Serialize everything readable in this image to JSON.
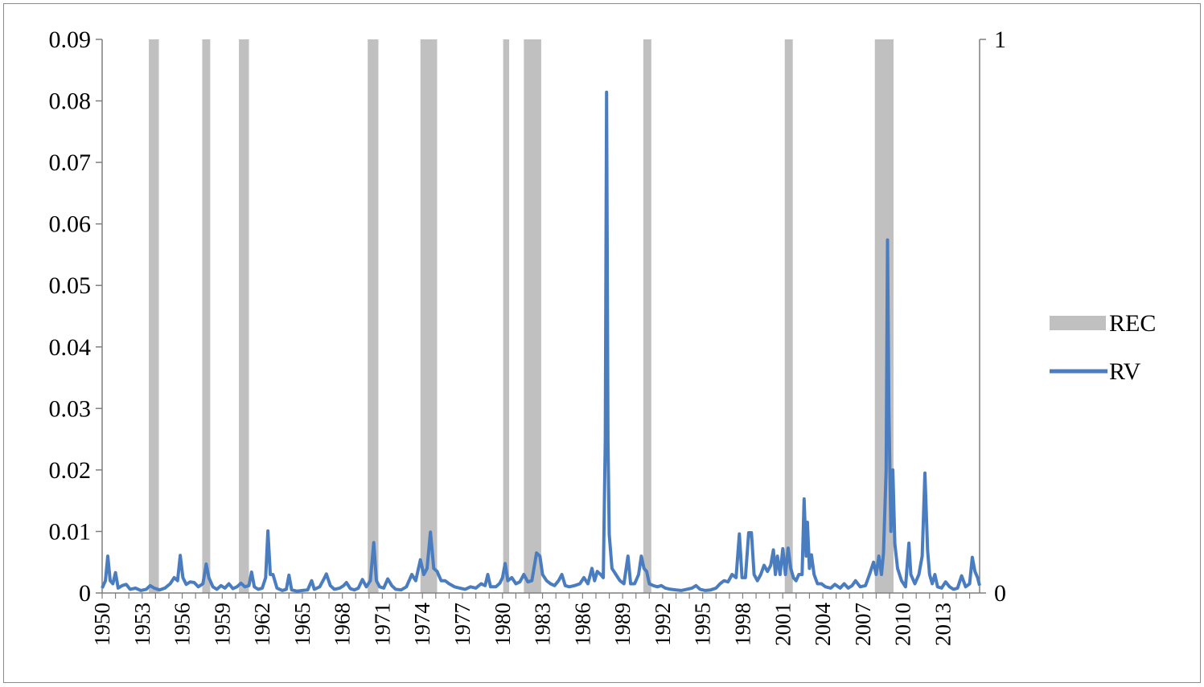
{
  "chart_data": {
    "type": "line",
    "title": "",
    "xlabel": "",
    "ylabel": "",
    "x_range": [
      1950,
      2015.75
    ],
    "x_tick_labels": [
      "1950",
      "1953",
      "1956",
      "1959",
      "1962",
      "1965",
      "1968",
      "1971",
      "1974",
      "1977",
      "1980",
      "1983",
      "1986",
      "1989",
      "1992",
      "1995",
      "1998",
      "2001",
      "2004",
      "2007",
      "2010",
      "2013"
    ],
    "y_left": {
      "range": [
        0,
        0.09
      ],
      "tick_labels": [
        "0",
        "0.01",
        "0.02",
        "0.03",
        "0.04",
        "0.05",
        "0.06",
        "0.07",
        "0.08",
        "0.09"
      ]
    },
    "y_right": {
      "range": [
        0,
        1
      ],
      "tick_labels": [
        "0",
        "1"
      ]
    },
    "legend": {
      "placement": "right",
      "entries": [
        {
          "label": "REC",
          "kind": "bar",
          "color": "#c0c0c0"
        },
        {
          "label": "RV",
          "kind": "line",
          "color": "#4a7dbf"
        }
      ]
    },
    "series": [
      {
        "name": "REC",
        "axis": "right",
        "kind": "shaded-periods",
        "color": "#c0c0c0",
        "periods": [
          [
            1953.5,
            1954.25
          ],
          [
            1957.5,
            1958.1
          ],
          [
            1960.25,
            1961.0
          ],
          [
            1969.9,
            1970.7
          ],
          [
            1973.85,
            1975.1
          ],
          [
            1980.05,
            1980.5
          ],
          [
            1981.6,
            1982.9
          ],
          [
            1990.55,
            1991.15
          ],
          [
            2001.15,
            2001.75
          ],
          [
            2007.9,
            2009.3
          ]
        ]
      },
      {
        "name": "RV",
        "axis": "left",
        "kind": "line",
        "color": "#4a7dbf",
        "points": [
          [
            1950.0,
            0.0008
          ],
          [
            1950.25,
            0.002
          ],
          [
            1950.42,
            0.006
          ],
          [
            1950.6,
            0.002
          ],
          [
            1950.8,
            0.0015
          ],
          [
            1951.0,
            0.0033
          ],
          [
            1951.2,
            0.0008
          ],
          [
            1951.5,
            0.0012
          ],
          [
            1951.8,
            0.0014
          ],
          [
            1952.1,
            0.0006
          ],
          [
            1952.5,
            0.0008
          ],
          [
            1952.9,
            0.0004
          ],
          [
            1953.3,
            0.0006
          ],
          [
            1953.6,
            0.0012
          ],
          [
            1953.9,
            0.0008
          ],
          [
            1954.3,
            0.0005
          ],
          [
            1954.7,
            0.0008
          ],
          [
            1955.1,
            0.0015
          ],
          [
            1955.4,
            0.0025
          ],
          [
            1955.65,
            0.002
          ],
          [
            1955.85,
            0.0061
          ],
          [
            1956.05,
            0.0025
          ],
          [
            1956.3,
            0.0014
          ],
          [
            1956.6,
            0.0018
          ],
          [
            1956.9,
            0.0017
          ],
          [
            1957.2,
            0.001
          ],
          [
            1957.55,
            0.0015
          ],
          [
            1957.8,
            0.0047
          ],
          [
            1958.0,
            0.0025
          ],
          [
            1958.3,
            0.001
          ],
          [
            1958.6,
            0.0006
          ],
          [
            1958.9,
            0.0012
          ],
          [
            1959.2,
            0.0008
          ],
          [
            1959.5,
            0.0015
          ],
          [
            1959.8,
            0.0007
          ],
          [
            1960.1,
            0.001
          ],
          [
            1960.4,
            0.0016
          ],
          [
            1960.7,
            0.001
          ],
          [
            1961.0,
            0.0012
          ],
          [
            1961.2,
            0.0034
          ],
          [
            1961.4,
            0.001
          ],
          [
            1961.7,
            0.0006
          ],
          [
            1962.0,
            0.0008
          ],
          [
            1962.25,
            0.0025
          ],
          [
            1962.42,
            0.0101
          ],
          [
            1962.6,
            0.003
          ],
          [
            1962.8,
            0.003
          ],
          [
            1963.1,
            0.0008
          ],
          [
            1963.5,
            0.0004
          ],
          [
            1963.8,
            0.0006
          ],
          [
            1964.0,
            0.0029
          ],
          [
            1964.2,
            0.0005
          ],
          [
            1964.6,
            0.0003
          ],
          [
            1965.0,
            0.0004
          ],
          [
            1965.4,
            0.0005
          ],
          [
            1965.7,
            0.002
          ],
          [
            1965.9,
            0.0006
          ],
          [
            1966.3,
            0.001
          ],
          [
            1966.6,
            0.0022
          ],
          [
            1966.8,
            0.0031
          ],
          [
            1967.1,
            0.0012
          ],
          [
            1967.4,
            0.0006
          ],
          [
            1967.8,
            0.0008
          ],
          [
            1968.1,
            0.0012
          ],
          [
            1968.3,
            0.0017
          ],
          [
            1968.6,
            0.0007
          ],
          [
            1968.9,
            0.0005
          ],
          [
            1969.2,
            0.0008
          ],
          [
            1969.5,
            0.0022
          ],
          [
            1969.8,
            0.001
          ],
          [
            1970.1,
            0.002
          ],
          [
            1970.35,
            0.0082
          ],
          [
            1970.55,
            0.002
          ],
          [
            1970.8,
            0.001
          ],
          [
            1971.1,
            0.0008
          ],
          [
            1971.4,
            0.0023
          ],
          [
            1971.7,
            0.0012
          ],
          [
            1972.0,
            0.0006
          ],
          [
            1972.4,
            0.0005
          ],
          [
            1972.8,
            0.001
          ],
          [
            1973.2,
            0.003
          ],
          [
            1973.5,
            0.002
          ],
          [
            1973.85,
            0.0054
          ],
          [
            1974.1,
            0.003
          ],
          [
            1974.35,
            0.004
          ],
          [
            1974.6,
            0.0099
          ],
          [
            1974.85,
            0.004
          ],
          [
            1975.1,
            0.0035
          ],
          [
            1975.4,
            0.002
          ],
          [
            1975.7,
            0.002
          ],
          [
            1976.0,
            0.0015
          ],
          [
            1976.4,
            0.001
          ],
          [
            1976.8,
            0.0008
          ],
          [
            1977.2,
            0.0006
          ],
          [
            1977.6,
            0.001
          ],
          [
            1978.0,
            0.0008
          ],
          [
            1978.4,
            0.0015
          ],
          [
            1978.7,
            0.0012
          ],
          [
            1978.9,
            0.003
          ],
          [
            1979.1,
            0.001
          ],
          [
            1979.5,
            0.001
          ],
          [
            1979.8,
            0.0016
          ],
          [
            1980.0,
            0.0025
          ],
          [
            1980.2,
            0.0048
          ],
          [
            1980.4,
            0.002
          ],
          [
            1980.7,
            0.0025
          ],
          [
            1981.0,
            0.0015
          ],
          [
            1981.3,
            0.0018
          ],
          [
            1981.6,
            0.003
          ],
          [
            1981.9,
            0.0018
          ],
          [
            1982.2,
            0.002
          ],
          [
            1982.55,
            0.0065
          ],
          [
            1982.8,
            0.006
          ],
          [
            1983.0,
            0.003
          ],
          [
            1983.3,
            0.002
          ],
          [
            1983.6,
            0.0015
          ],
          [
            1983.9,
            0.0012
          ],
          [
            1984.2,
            0.002
          ],
          [
            1984.45,
            0.003
          ],
          [
            1984.7,
            0.0012
          ],
          [
            1985.0,
            0.001
          ],
          [
            1985.4,
            0.0012
          ],
          [
            1985.8,
            0.0015
          ],
          [
            1986.1,
            0.0025
          ],
          [
            1986.4,
            0.0015
          ],
          [
            1986.7,
            0.004
          ],
          [
            1986.9,
            0.002
          ],
          [
            1987.1,
            0.0035
          ],
          [
            1987.35,
            0.003
          ],
          [
            1987.55,
            0.0025
          ],
          [
            1987.7,
            0.025
          ],
          [
            1987.8,
            0.0814
          ],
          [
            1987.9,
            0.025
          ],
          [
            1988.0,
            0.0095
          ],
          [
            1988.2,
            0.004
          ],
          [
            1988.5,
            0.003
          ],
          [
            1988.8,
            0.002
          ],
          [
            1989.1,
            0.0015
          ],
          [
            1989.4,
            0.006
          ],
          [
            1989.6,
            0.0015
          ],
          [
            1989.9,
            0.0015
          ],
          [
            1990.2,
            0.003
          ],
          [
            1990.4,
            0.006
          ],
          [
            1990.6,
            0.004
          ],
          [
            1990.8,
            0.0035
          ],
          [
            1991.0,
            0.0015
          ],
          [
            1991.3,
            0.0012
          ],
          [
            1991.6,
            0.001
          ],
          [
            1991.9,
            0.0012
          ],
          [
            1992.2,
            0.0008
          ],
          [
            1992.6,
            0.0006
          ],
          [
            1993.0,
            0.0005
          ],
          [
            1993.4,
            0.0004
          ],
          [
            1993.8,
            0.0006
          ],
          [
            1994.2,
            0.0008
          ],
          [
            1994.5,
            0.0012
          ],
          [
            1994.8,
            0.0006
          ],
          [
            1995.2,
            0.0004
          ],
          [
            1995.6,
            0.0005
          ],
          [
            1996.0,
            0.0008
          ],
          [
            1996.3,
            0.0015
          ],
          [
            1996.6,
            0.002
          ],
          [
            1996.9,
            0.0018
          ],
          [
            1997.2,
            0.003
          ],
          [
            1997.5,
            0.0025
          ],
          [
            1997.75,
            0.0096
          ],
          [
            1997.95,
            0.0025
          ],
          [
            1998.2,
            0.0025
          ],
          [
            1998.45,
            0.0098
          ],
          [
            1998.65,
            0.0098
          ],
          [
            1998.85,
            0.003
          ],
          [
            1999.1,
            0.002
          ],
          [
            1999.35,
            0.003
          ],
          [
            1999.6,
            0.0045
          ],
          [
            1999.85,
            0.0035
          ],
          [
            2000.1,
            0.0045
          ],
          [
            2000.3,
            0.007
          ],
          [
            2000.45,
            0.003
          ],
          [
            2000.6,
            0.006
          ],
          [
            2000.8,
            0.003
          ],
          [
            2001.0,
            0.0072
          ],
          [
            2001.2,
            0.003
          ],
          [
            2001.4,
            0.0073
          ],
          [
            2001.6,
            0.004
          ],
          [
            2001.8,
            0.0025
          ],
          [
            2002.0,
            0.002
          ],
          [
            2002.2,
            0.003
          ],
          [
            2002.45,
            0.003
          ],
          [
            2002.6,
            0.0153
          ],
          [
            2002.75,
            0.006
          ],
          [
            2002.85,
            0.0115
          ],
          [
            2003.0,
            0.004
          ],
          [
            2003.15,
            0.0062
          ],
          [
            2003.35,
            0.003
          ],
          [
            2003.6,
            0.0015
          ],
          [
            2003.9,
            0.0015
          ],
          [
            2004.2,
            0.001
          ],
          [
            2004.6,
            0.0008
          ],
          [
            2004.9,
            0.0014
          ],
          [
            2005.3,
            0.0008
          ],
          [
            2005.6,
            0.0015
          ],
          [
            2005.9,
            0.0008
          ],
          [
            2006.2,
            0.0012
          ],
          [
            2006.45,
            0.002
          ],
          [
            2006.8,
            0.001
          ],
          [
            2007.2,
            0.0012
          ],
          [
            2007.5,
            0.003
          ],
          [
            2007.8,
            0.005
          ],
          [
            2008.0,
            0.003
          ],
          [
            2008.2,
            0.006
          ],
          [
            2008.4,
            0.003
          ],
          [
            2008.55,
            0.0065
          ],
          [
            2008.75,
            0.02
          ],
          [
            2008.85,
            0.0574
          ],
          [
            2008.95,
            0.03
          ],
          [
            2009.1,
            0.01
          ],
          [
            2009.25,
            0.02
          ],
          [
            2009.4,
            0.008
          ],
          [
            2009.6,
            0.004
          ],
          [
            2009.9,
            0.002
          ],
          [
            2010.2,
            0.001
          ],
          [
            2010.45,
            0.0081
          ],
          [
            2010.6,
            0.003
          ],
          [
            2010.9,
            0.0015
          ],
          [
            2011.2,
            0.003
          ],
          [
            2011.45,
            0.006
          ],
          [
            2011.65,
            0.0195
          ],
          [
            2011.85,
            0.007
          ],
          [
            2012.0,
            0.003
          ],
          [
            2012.2,
            0.0015
          ],
          [
            2012.4,
            0.003
          ],
          [
            2012.6,
            0.001
          ],
          [
            2012.9,
            0.0008
          ],
          [
            2013.2,
            0.0018
          ],
          [
            2013.5,
            0.001
          ],
          [
            2013.8,
            0.0006
          ],
          [
            2014.1,
            0.0008
          ],
          [
            2014.4,
            0.0028
          ],
          [
            2014.7,
            0.001
          ],
          [
            2015.0,
            0.0015
          ],
          [
            2015.2,
            0.0058
          ],
          [
            2015.4,
            0.0035
          ],
          [
            2015.6,
            0.0025
          ],
          [
            2015.75,
            0.0012
          ]
        ]
      }
    ]
  }
}
